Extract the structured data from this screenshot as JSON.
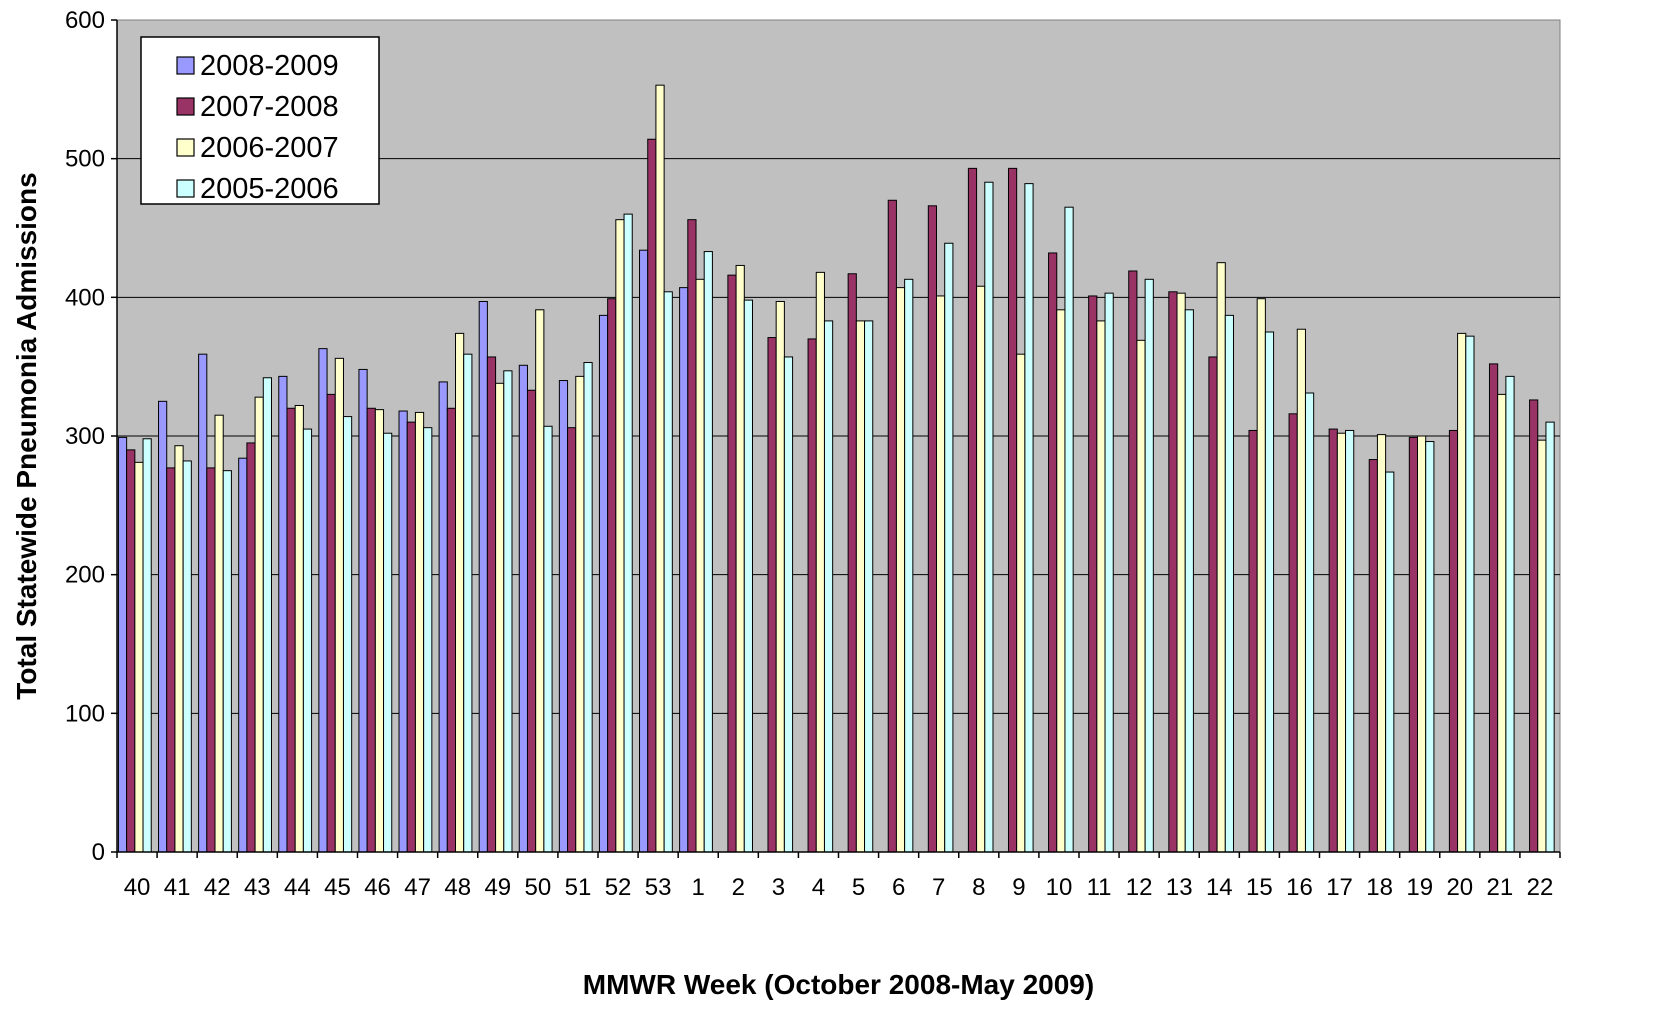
{
  "chart_data": {
    "type": "bar",
    "title": "",
    "xlabel": "MMWR Week (October 2008-May 2009)",
    "ylabel": "Total Statewide Pneumonia Admissions",
    "ylim": [
      0,
      600
    ],
    "yticks": [
      0,
      100,
      200,
      300,
      400,
      500,
      600
    ],
    "grid": true,
    "legend_position": "top-left",
    "plot_background": "#c0c0c0",
    "categories": [
      "40",
      "41",
      "42",
      "43",
      "44",
      "45",
      "46",
      "47",
      "48",
      "49",
      "50",
      "51",
      "52",
      "53",
      "1",
      "2",
      "3",
      "4",
      "5",
      "6",
      "7",
      "8",
      "9",
      "10",
      "11",
      "12",
      "13",
      "14",
      "15",
      "16",
      "17",
      "18",
      "19",
      "20",
      "21",
      "22"
    ],
    "series": [
      {
        "name": "2008-2009",
        "color": "#9999ff",
        "values": [
          299,
          325,
          359,
          284,
          343,
          363,
          348,
          318,
          339,
          397,
          351,
          340,
          387,
          434,
          407,
          null,
          null,
          null,
          null,
          null,
          null,
          null,
          null,
          null,
          null,
          null,
          null,
          null,
          null,
          null,
          null,
          null,
          null,
          null,
          null,
          null
        ]
      },
      {
        "name": "2007-2008",
        "color": "#993366",
        "values": [
          290,
          277,
          277,
          295,
          320,
          330,
          320,
          310,
          320,
          357,
          333,
          306,
          399,
          514,
          456,
          416,
          371,
          370,
          417,
          470,
          466,
          493,
          493,
          432,
          401,
          419,
          404,
          357,
          304,
          316,
          305,
          283,
          299,
          304,
          352,
          326
        ]
      },
      {
        "name": "2006-2007",
        "color": "#ffffcc",
        "values": [
          281,
          293,
          315,
          328,
          322,
          356,
          319,
          317,
          374,
          338,
          391,
          343,
          456,
          553,
          413,
          423,
          397,
          418,
          383,
          407,
          401,
          408,
          359,
          391,
          383,
          369,
          403,
          425,
          399,
          377,
          302,
          301,
          300,
          374,
          330,
          297
        ]
      },
      {
        "name": "2005-2006",
        "color": "#ccffff",
        "values": [
          298,
          282,
          275,
          342,
          305,
          314,
          302,
          306,
          359,
          347,
          307,
          353,
          460,
          404,
          433,
          398,
          357,
          383,
          383,
          413,
          439,
          483,
          482,
          465,
          403,
          413,
          391,
          387,
          375,
          331,
          304,
          274,
          296,
          372,
          343,
          310
        ]
      }
    ]
  }
}
